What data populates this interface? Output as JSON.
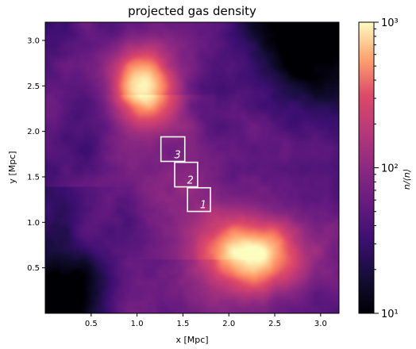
{
  "chart_data": {
    "type": "heatmap",
    "title": "projected gas density",
    "xlabel": "x [Mpc]",
    "ylabel": "y [Mpc]",
    "xlim": [
      0.0,
      3.2
    ],
    "ylim": [
      0.0,
      3.2
    ],
    "xticks": [
      "0.5",
      "1.0",
      "1.5",
      "2.0",
      "2.5",
      "3.0"
    ],
    "yticks": [
      "0.5",
      "1.0",
      "1.5",
      "2.0",
      "2.5",
      "3.0"
    ],
    "colormap": "magma",
    "colorbar": {
      "label": "n/⟨n⟩",
      "scale": "log",
      "range": [
        10,
        1000
      ],
      "ticks": [
        {
          "value": 10,
          "label": "10¹"
        },
        {
          "value": 100,
          "label": "10²"
        },
        {
          "value": 1000,
          "label": "10³"
        }
      ]
    },
    "features": [
      {
        "x": 1.05,
        "y": 2.5,
        "peak": 900,
        "sx": 0.22,
        "sy": 0.26
      },
      {
        "x": 2.25,
        "y": 0.65,
        "peak": 1000,
        "sx": 0.35,
        "sy": 0.28
      }
    ],
    "boxes": [
      {
        "label": "1",
        "x0": 1.55,
        "x1": 1.8,
        "y0": 1.12,
        "y1": 1.38
      },
      {
        "label": "2",
        "x0": 1.41,
        "x1": 1.66,
        "y0": 1.39,
        "y1": 1.66
      },
      {
        "label": "3",
        "x0": 1.26,
        "x1": 1.52,
        "y0": 1.67,
        "y1": 1.94
      }
    ]
  },
  "colors": {
    "box_outline": "#ffffff",
    "axis": "#000000",
    "background": "#ffffff"
  }
}
